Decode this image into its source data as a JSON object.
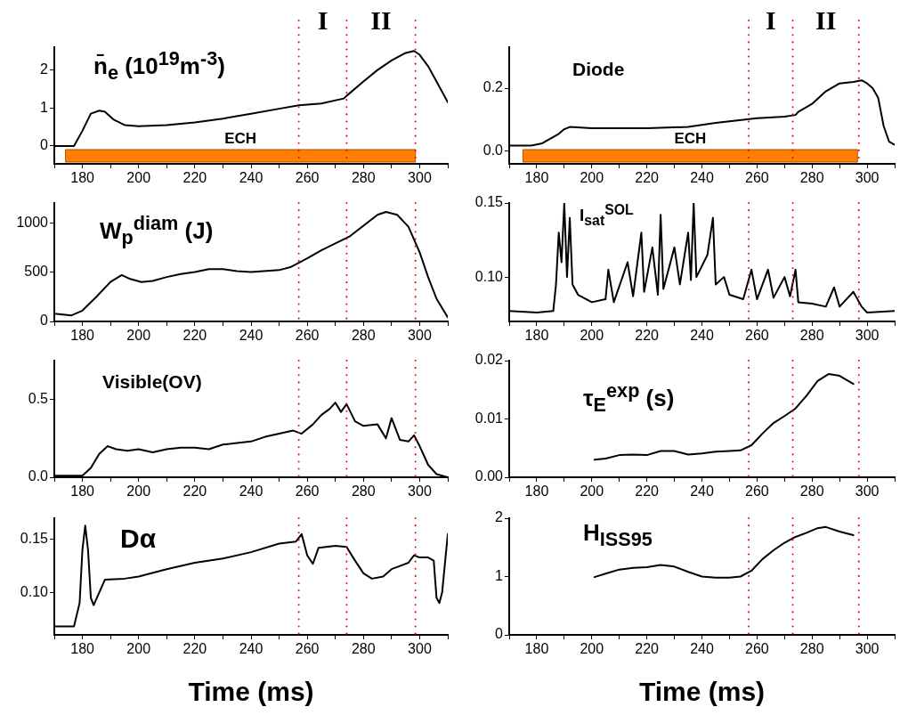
{
  "chart_data": [
    {
      "type": "line",
      "title": "n̄$_{e}$ (10$^{19}$m$^{-3}$)",
      "x": [
        170,
        177,
        180,
        183,
        186,
        188,
        191,
        195,
        200,
        210,
        220,
        230,
        240,
        250,
        257,
        265,
        273,
        274,
        280,
        285,
        290,
        295,
        298,
        300,
        303,
        306,
        310
      ],
      "series": [
        {
          "color": "#000000",
          "values": [
            0,
            0,
            0.4,
            0.85,
            0.93,
            0.9,
            0.7,
            0.55,
            0.52,
            0.55,
            0.62,
            0.72,
            0.85,
            0.98,
            1.07,
            1.12,
            1.25,
            1.32,
            1.7,
            2.0,
            2.25,
            2.45,
            2.5,
            2.4,
            2.1,
            1.7,
            1.15
          ]
        }
      ],
      "xlim": [
        170,
        310
      ],
      "xticks": [
        {
          "value": 170,
          "label": null
        },
        180,
        {
          "value": 190,
          "label": null
        },
        200,
        {
          "value": 210,
          "label": null
        },
        220,
        {
          "value": 230,
          "label": null
        },
        240,
        {
          "value": 250,
          "label": null
        },
        260,
        {
          "value": 270,
          "label": null
        },
        280,
        {
          "value": 290,
          "label": null
        },
        300,
        {
          "value": 310,
          "label": null
        }
      ],
      "ylim": [
        -0.47,
        2.6
      ],
      "yticks": [
        0,
        1,
        2
      ],
      "ref_lines": [
        {
          "axis": "x",
          "value": 257,
          "color": "#ff0000",
          "line_style": "dotted"
        },
        {
          "axis": "x",
          "value": 274,
          "color": "#ff0000",
          "line_style": "dotted"
        },
        {
          "axis": "x",
          "value": 298.5,
          "color": "#ff0000",
          "line_style": "dotted"
        }
      ],
      "bands": [
        {
          "axis": "x",
          "from": 174,
          "to": 298.5,
          "label": "ECH",
          "color": "#ff8000"
        }
      ],
      "annotations": [
        "I",
        "II"
      ]
    },
    {
      "type": "line",
      "title": "Diode",
      "x": [
        170,
        178,
        182,
        185,
        188,
        190,
        192,
        196,
        200,
        220,
        235,
        245,
        255,
        260,
        270,
        274,
        275,
        280,
        285,
        290,
        295,
        298,
        300,
        302,
        304,
        306,
        308,
        310
      ],
      "series": [
        {
          "color": "#000000",
          "values": [
            0.018,
            0.018,
            0.025,
            0.04,
            0.055,
            0.07,
            0.077,
            0.075,
            0.073,
            0.073,
            0.077,
            0.09,
            0.1,
            0.105,
            0.11,
            0.115,
            0.125,
            0.15,
            0.19,
            0.215,
            0.22,
            0.225,
            0.215,
            0.2,
            0.17,
            0.08,
            0.03,
            0.02
          ]
        }
      ],
      "xlim": [
        170,
        310
      ],
      "xticks": [
        {
          "value": 170,
          "label": null
        },
        180,
        {
          "value": 190,
          "label": null
        },
        200,
        {
          "value": 210,
          "label": null
        },
        220,
        {
          "value": 230,
          "label": null
        },
        240,
        {
          "value": 250,
          "label": null
        },
        260,
        {
          "value": 270,
          "label": null
        },
        280,
        {
          "value": 290,
          "label": null
        },
        300,
        {
          "value": 310,
          "label": null
        }
      ],
      "ylim": [
        -0.04,
        0.33
      ],
      "yticks": [
        {
          "value": 0,
          "label": "0.0"
        },
        {
          "value": 0.2,
          "label": "0.2"
        }
      ],
      "ref_lines": [
        {
          "axis": "x",
          "value": 257,
          "color": "#ff0000",
          "line_style": "dotted"
        },
        {
          "axis": "x",
          "value": 273,
          "color": "#ff0000",
          "line_style": "dotted"
        },
        {
          "axis": "x",
          "value": 297,
          "color": "#ff0000",
          "line_style": "dotted"
        }
      ],
      "bands": [
        {
          "axis": "x",
          "from": 175,
          "to": 296.5,
          "label": "ECH",
          "color": "#ff8000"
        }
      ],
      "annotations": [
        "I",
        "II"
      ]
    },
    {
      "type": "line",
      "title": "W$_{p}$$^{diam}$ (J)",
      "x": [
        170,
        176,
        180,
        185,
        190,
        194,
        197,
        201,
        205,
        210,
        215,
        220,
        225,
        230,
        235,
        240,
        250,
        254,
        260,
        265,
        270,
        275,
        280,
        285,
        288,
        292,
        296,
        300,
        303,
        306,
        310
      ],
      "series": [
        {
          "color": "#000000",
          "values": [
            80,
            60,
            110,
            250,
            400,
            470,
            430,
            400,
            410,
            450,
            480,
            500,
            530,
            530,
            510,
            500,
            520,
            550,
            640,
            720,
            790,
            860,
            970,
            1080,
            1110,
            1080,
            960,
            700,
            450,
            230,
            40
          ]
        }
      ],
      "xlim": [
        170,
        310
      ],
      "xticks": [
        {
          "value": 170,
          "label": null
        },
        180,
        {
          "value": 190,
          "label": null
        },
        200,
        {
          "value": 210,
          "label": null
        },
        220,
        {
          "value": 230,
          "label": null
        },
        240,
        {
          "value": 250,
          "label": null
        },
        260,
        {
          "value": 270,
          "label": null
        },
        280,
        {
          "value": 290,
          "label": null
        },
        300,
        {
          "value": 310,
          "label": null
        }
      ],
      "ylim": [
        0,
        1200
      ],
      "yticks": [
        0,
        500,
        1000
      ],
      "ref_lines": [
        {
          "axis": "x",
          "value": 257,
          "color": "#ff0000",
          "line_style": "dotted"
        },
        {
          "axis": "x",
          "value": 274,
          "color": "#ff0000",
          "line_style": "dotted"
        },
        {
          "axis": "x",
          "value": 298.5,
          "color": "#ff0000",
          "line_style": "dotted"
        }
      ]
    },
    {
      "type": "line",
      "title": "I$_{sat}$$^{SOL}$",
      "x": [
        170,
        180,
        186,
        187,
        188,
        189,
        190,
        191,
        192,
        193,
        195,
        200,
        205,
        206,
        208,
        213,
        215,
        218,
        219,
        222,
        224,
        225,
        226,
        230,
        232,
        235,
        236,
        237,
        238,
        242,
        244,
        245,
        248,
        250,
        255,
        258,
        260,
        264,
        266,
        270,
        272,
        274,
        275,
        280,
        285,
        288,
        290,
        295,
        298,
        300,
        310
      ],
      "series": [
        {
          "color": "#000000",
          "values": [
            0.077,
            0.076,
            0.077,
            0.095,
            0.13,
            0.11,
            0.15,
            0.1,
            0.14,
            0.095,
            0.088,
            0.083,
            0.085,
            0.105,
            0.083,
            0.11,
            0.087,
            0.13,
            0.09,
            0.12,
            0.088,
            0.142,
            0.092,
            0.12,
            0.095,
            0.13,
            0.098,
            0.15,
            0.1,
            0.115,
            0.14,
            0.095,
            0.1,
            0.088,
            0.085,
            0.105,
            0.085,
            0.105,
            0.086,
            0.1,
            0.087,
            0.105,
            0.083,
            0.082,
            0.08,
            0.093,
            0.08,
            0.09,
            0.08,
            0.076,
            0.077
          ]
        }
      ],
      "xlim": [
        170,
        310
      ],
      "xticks": [
        {
          "value": 170,
          "label": null
        },
        180,
        {
          "value": 190,
          "label": null
        },
        200,
        {
          "value": 210,
          "label": null
        },
        220,
        {
          "value": 230,
          "label": null
        },
        240,
        {
          "value": 250,
          "label": null
        },
        260,
        {
          "value": 270,
          "label": null
        },
        280,
        {
          "value": 290,
          "label": null
        },
        300,
        {
          "value": 310,
          "label": null
        }
      ],
      "ylim": [
        0.07,
        0.15
      ],
      "yticks": [
        {
          "value": 0.1,
          "label": "0.10"
        },
        {
          "value": 0.15,
          "label": "0.15"
        }
      ],
      "ref_lines": [
        {
          "axis": "x",
          "value": 257,
          "color": "#ff0000",
          "line_style": "dotted"
        },
        {
          "axis": "x",
          "value": 273,
          "color": "#ff0000",
          "line_style": "dotted"
        },
        {
          "axis": "x",
          "value": 297,
          "color": "#ff0000",
          "line_style": "dotted"
        }
      ]
    },
    {
      "type": "line",
      "title": "Visible(OV)",
      "x": [
        170,
        180,
        183,
        186,
        189,
        192,
        196,
        200,
        205,
        210,
        215,
        220,
        225,
        230,
        235,
        240,
        245,
        250,
        255,
        258,
        262,
        265,
        268,
        270,
        272,
        274,
        277,
        280,
        285,
        288,
        290,
        293,
        296,
        298,
        300,
        303,
        306,
        310
      ],
      "series": [
        {
          "color": "#000000",
          "values": [
            0.01,
            0.01,
            0.06,
            0.15,
            0.2,
            0.18,
            0.17,
            0.18,
            0.16,
            0.18,
            0.19,
            0.19,
            0.18,
            0.21,
            0.22,
            0.23,
            0.26,
            0.28,
            0.3,
            0.28,
            0.34,
            0.4,
            0.44,
            0.48,
            0.42,
            0.47,
            0.36,
            0.33,
            0.34,
            0.25,
            0.38,
            0.24,
            0.23,
            0.27,
            0.2,
            0.08,
            0.02,
            0
          ]
        }
      ],
      "xlim": [
        170,
        310
      ],
      "xticks": [
        {
          "value": 170,
          "label": null
        },
        180,
        {
          "value": 190,
          "label": null
        },
        200,
        {
          "value": 210,
          "label": null
        },
        220,
        {
          "value": 230,
          "label": null
        },
        240,
        {
          "value": 250,
          "label": null
        },
        260,
        {
          "value": 270,
          "label": null
        },
        280,
        {
          "value": 290,
          "label": null
        },
        300,
        {
          "value": 310,
          "label": null
        }
      ],
      "ylim": [
        0,
        0.75
      ],
      "yticks": [
        {
          "value": 0,
          "label": "0.0"
        },
        {
          "value": 0.5,
          "label": "0.5"
        }
      ],
      "ref_lines": [
        {
          "axis": "x",
          "value": 257,
          "color": "#ff0000",
          "line_style": "dotted"
        },
        {
          "axis": "x",
          "value": 274,
          "color": "#ff0000",
          "line_style": "dotted"
        },
        {
          "axis": "x",
          "value": 298.5,
          "color": "#ff0000",
          "line_style": "dotted"
        }
      ]
    },
    {
      "type": "line",
      "title": "τ$_{E}$$^{exp}$ (s)",
      "x": [
        201,
        205,
        210,
        215,
        220,
        225,
        230,
        235,
        240,
        245,
        250,
        254,
        258,
        262,
        266,
        270,
        274,
        278,
        282,
        286,
        290,
        295
      ],
      "series": [
        {
          "color": "#000000",
          "values": [
            0.003,
            0.0032,
            0.0038,
            0.0039,
            0.0038,
            0.0045,
            0.0045,
            0.0039,
            0.0041,
            0.0044,
            0.0045,
            0.0046,
            0.0055,
            0.0075,
            0.0093,
            0.0105,
            0.0118,
            0.014,
            0.0165,
            0.0177,
            0.0174,
            0.016
          ]
        }
      ],
      "xlim": [
        170,
        310
      ],
      "xticks": [
        {
          "value": 170,
          "label": null
        },
        180,
        {
          "value": 190,
          "label": null
        },
        200,
        {
          "value": 210,
          "label": null
        },
        220,
        {
          "value": 230,
          "label": null
        },
        240,
        {
          "value": 250,
          "label": null
        },
        260,
        {
          "value": 270,
          "label": null
        },
        280,
        {
          "value": 290,
          "label": null
        },
        300,
        {
          "value": 310,
          "label": null
        }
      ],
      "ylim": [
        0,
        0.02
      ],
      "yticks": [
        {
          "value": 0,
          "label": "0.00"
        },
        {
          "value": 0.01,
          "label": "0.01"
        },
        {
          "value": 0.02,
          "label": "0.02"
        }
      ],
      "ref_lines": [
        {
          "axis": "x",
          "value": 257,
          "color": "#ff0000",
          "line_style": "dotted"
        },
        {
          "axis": "x",
          "value": 273,
          "color": "#ff0000",
          "line_style": "dotted"
        },
        {
          "axis": "x",
          "value": 297,
          "color": "#ff0000",
          "line_style": "dotted"
        }
      ]
    },
    {
      "type": "line",
      "title": "Dα",
      "xlabel": "Time (ms)",
      "x": [
        170,
        177,
        179,
        180,
        181,
        182,
        183,
        184,
        186,
        188,
        195,
        200,
        210,
        220,
        230,
        240,
        250,
        256,
        258,
        260,
        262,
        264,
        270,
        274,
        277,
        280,
        283,
        287,
        290,
        293,
        296,
        298,
        300,
        303,
        305,
        306,
        307,
        308,
        310
      ],
      "series": [
        {
          "color": "#000000",
          "values": [
            0.068,
            0.068,
            0.09,
            0.14,
            0.163,
            0.14,
            0.095,
            0.088,
            0.1,
            0.112,
            0.113,
            0.115,
            0.122,
            0.128,
            0.132,
            0.138,
            0.146,
            0.148,
            0.155,
            0.135,
            0.127,
            0.142,
            0.144,
            0.143,
            0.13,
            0.118,
            0.113,
            0.115,
            0.122,
            0.125,
            0.128,
            0.135,
            0.133,
            0.133,
            0.13,
            0.095,
            0.09,
            0.1,
            0.155
          ]
        }
      ],
      "xlim": [
        170,
        310
      ],
      "xticks": [
        {
          "value": 170,
          "label": null
        },
        180,
        {
          "value": 190,
          "label": null
        },
        200,
        {
          "value": 210,
          "label": null
        },
        220,
        {
          "value": 230,
          "label": null
        },
        240,
        {
          "value": 250,
          "label": null
        },
        260,
        {
          "value": 270,
          "label": null
        },
        280,
        {
          "value": 290,
          "label": null
        },
        300,
        {
          "value": 310,
          "label": null
        }
      ],
      "ylim": [
        0.06,
        0.17
      ],
      "yticks": [
        {
          "value": 0.1,
          "label": "0.10"
        },
        {
          "value": 0.15,
          "label": "0.15"
        }
      ],
      "ref_lines": [
        {
          "axis": "x",
          "value": 257,
          "color": "#ff0000",
          "line_style": "dotted"
        },
        {
          "axis": "x",
          "value": 274,
          "color": "#ff0000",
          "line_style": "dotted"
        },
        {
          "axis": "x",
          "value": 298.5,
          "color": "#ff0000",
          "line_style": "dotted"
        }
      ]
    },
    {
      "type": "line",
      "title": "H$_{ISS95}$",
      "xlabel": "Time (ms)",
      "x": [
        201,
        205,
        210,
        215,
        220,
        225,
        230,
        235,
        240,
        245,
        250,
        254,
        258,
        262,
        266,
        270,
        274,
        278,
        282,
        285,
        290,
        295
      ],
      "series": [
        {
          "color": "#000000",
          "values": [
            0.99,
            1.05,
            1.12,
            1.15,
            1.16,
            1.2,
            1.17,
            1.08,
            1.0,
            0.98,
            0.98,
            1.0,
            1.1,
            1.3,
            1.45,
            1.58,
            1.68,
            1.75,
            1.83,
            1.85,
            1.77,
            1.71
          ]
        }
      ],
      "xlim": [
        170,
        310
      ],
      "xticks": [
        {
          "value": 170,
          "label": null
        },
        180,
        {
          "value": 190,
          "label": null
        },
        200,
        {
          "value": 210,
          "label": null
        },
        220,
        {
          "value": 230,
          "label": null
        },
        240,
        {
          "value": 250,
          "label": null
        },
        260,
        {
          "value": 270,
          "label": null
        },
        280,
        {
          "value": 290,
          "label": null
        },
        300,
        {
          "value": 310,
          "label": null
        }
      ],
      "ylim": [
        0,
        2
      ],
      "yticks": [
        0,
        1,
        2
      ],
      "ref_lines": [
        {
          "axis": "x",
          "value": 257,
          "color": "#ff0000",
          "line_style": "dotted"
        },
        {
          "axis": "x",
          "value": 273,
          "color": "#ff0000",
          "line_style": "dotted"
        },
        {
          "axis": "x",
          "value": 297,
          "color": "#ff0000",
          "line_style": "dotted"
        }
      ]
    }
  ]
}
